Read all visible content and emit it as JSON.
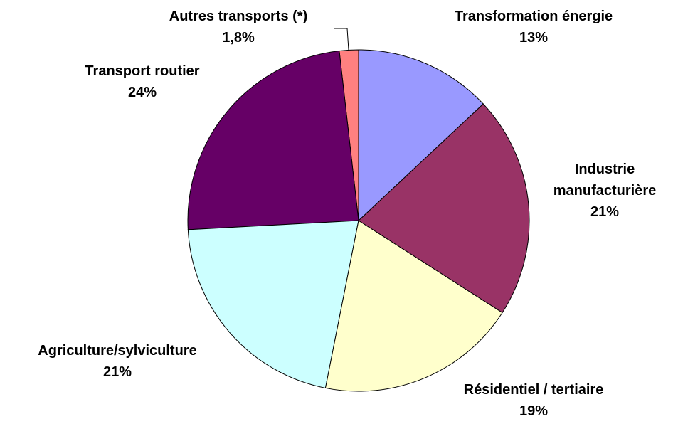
{
  "chart_data": {
    "type": "pie",
    "categories": [
      "Transformation énergie",
      "Industrie manufacturière",
      "Résidentiel / tertiaire",
      "Agriculture/sylviculture",
      "Transport routier",
      "Autres transports (*)"
    ],
    "values": [
      13,
      21,
      19,
      21,
      24,
      1.8
    ],
    "value_labels": [
      "13%",
      "21%",
      "19%",
      "21%",
      "24%",
      "1,8%"
    ],
    "colors": [
      "#9999ff",
      "#993366",
      "#ffffcc",
      "#ccffff",
      "#660066",
      "#ff8080"
    ]
  }
}
